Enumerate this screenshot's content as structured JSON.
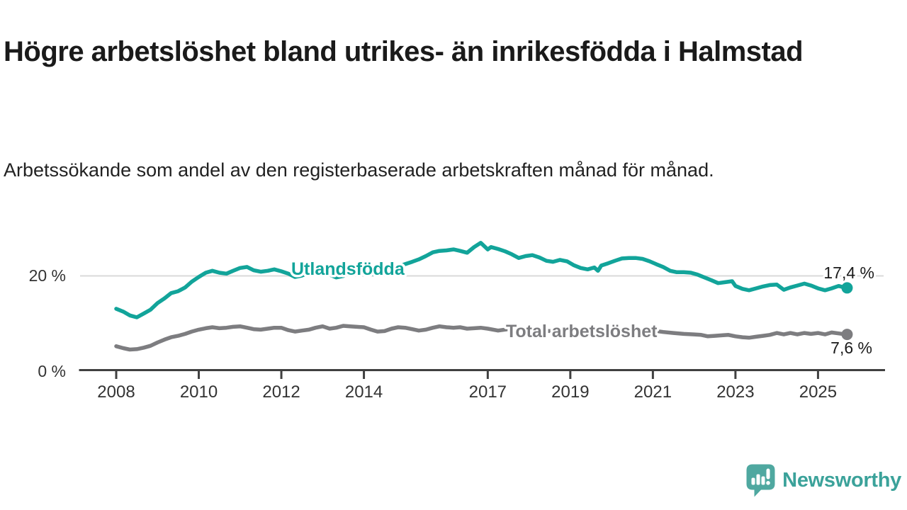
{
  "header": {
    "title": "Högre arbetslöshet bland utrikes- än inrikesfödda i Halmstad",
    "subtitle": "Arbetssökande som andel av den registerbaserade arbetskraften månad för månad."
  },
  "footer": {
    "brand": "Newsworthy"
  },
  "chart_data": {
    "type": "line",
    "title": "Högre arbetslöshet bland utrikes- än inrikesfödda i Halmstad",
    "subtitle": "Arbetssökande som andel av den registerbaserade arbetskraften månad för månad.",
    "xlabel": "",
    "ylabel": "",
    "x_unit": "year (monthly data)",
    "y_unit": "%",
    "ylim": [
      0,
      30
    ],
    "grid": "horizontal-20-only",
    "legend_position": "inline-on-line",
    "x_ticks": [
      {
        "year": 2008,
        "label": "2008"
      },
      {
        "year": 2010,
        "label": "2010"
      },
      {
        "year": 2012,
        "label": "2012"
      },
      {
        "year": 2014,
        "label": "2014"
      },
      {
        "year": 2017,
        "label": "2017"
      },
      {
        "year": 2019,
        "label": "2019"
      },
      {
        "year": 2021,
        "label": "2021"
      },
      {
        "year": 2023,
        "label": "2023"
      },
      {
        "year": 2025,
        "label": "2025"
      }
    ],
    "y_ticks": [
      {
        "value": 0,
        "label": "0 %"
      },
      {
        "value": 20,
        "label": "20 %"
      }
    ],
    "series": [
      {
        "name": "Utlandsfödda",
        "color": "#12a49a",
        "end_label": "17,4 %",
        "points": [
          [
            2008.0,
            13.0
          ],
          [
            2008.17,
            12.4
          ],
          [
            2008.33,
            11.6
          ],
          [
            2008.5,
            11.2
          ],
          [
            2008.67,
            12.0
          ],
          [
            2008.83,
            12.8
          ],
          [
            2009.0,
            14.2
          ],
          [
            2009.17,
            15.2
          ],
          [
            2009.33,
            16.3
          ],
          [
            2009.5,
            16.7
          ],
          [
            2009.67,
            17.5
          ],
          [
            2009.83,
            18.7
          ],
          [
            2010.0,
            19.7
          ],
          [
            2010.17,
            20.6
          ],
          [
            2010.33,
            21.0
          ],
          [
            2010.5,
            20.6
          ],
          [
            2010.67,
            20.4
          ],
          [
            2010.83,
            21.0
          ],
          [
            2011.0,
            21.6
          ],
          [
            2011.17,
            21.8
          ],
          [
            2011.33,
            21.1
          ],
          [
            2011.5,
            20.8
          ],
          [
            2011.67,
            21.0
          ],
          [
            2011.83,
            21.3
          ],
          [
            2012.0,
            20.9
          ],
          [
            2012.17,
            20.4
          ],
          [
            2012.33,
            19.7
          ],
          [
            2012.5,
            20.0
          ],
          [
            2012.67,
            20.6
          ],
          [
            2012.83,
            21.0
          ],
          [
            2013.0,
            20.7
          ],
          [
            2013.17,
            20.2
          ],
          [
            2013.33,
            19.6
          ],
          [
            2013.5,
            19.9
          ],
          [
            2013.67,
            20.5
          ],
          [
            2013.83,
            20.9
          ],
          [
            2014.0,
            20.9
          ],
          [
            2014.17,
            20.4
          ],
          [
            2014.33,
            20.1
          ],
          [
            2014.5,
            20.6
          ],
          [
            2014.67,
            21.3
          ],
          [
            2014.83,
            21.9
          ],
          [
            2015.0,
            22.4
          ],
          [
            2015.17,
            22.9
          ],
          [
            2015.33,
            23.4
          ],
          [
            2015.5,
            24.1
          ],
          [
            2015.67,
            24.9
          ],
          [
            2015.83,
            25.2
          ],
          [
            2016.0,
            25.3
          ],
          [
            2016.17,
            25.5
          ],
          [
            2016.33,
            25.2
          ],
          [
            2016.5,
            24.8
          ],
          [
            2016.67,
            26.0
          ],
          [
            2016.83,
            26.9
          ],
          [
            2017.0,
            25.5
          ],
          [
            2017.08,
            26.0
          ],
          [
            2017.25,
            25.6
          ],
          [
            2017.42,
            25.1
          ],
          [
            2017.58,
            24.5
          ],
          [
            2017.75,
            23.7
          ],
          [
            2017.92,
            24.1
          ],
          [
            2018.08,
            24.3
          ],
          [
            2018.25,
            23.8
          ],
          [
            2018.42,
            23.1
          ],
          [
            2018.58,
            22.9
          ],
          [
            2018.75,
            23.3
          ],
          [
            2018.92,
            23.0
          ],
          [
            2019.08,
            22.2
          ],
          [
            2019.25,
            21.6
          ],
          [
            2019.42,
            21.3
          ],
          [
            2019.58,
            21.7
          ],
          [
            2019.67,
            21.0
          ],
          [
            2019.75,
            22.1
          ],
          [
            2019.92,
            22.6
          ],
          [
            2020.08,
            23.1
          ],
          [
            2020.25,
            23.6
          ],
          [
            2020.42,
            23.7
          ],
          [
            2020.58,
            23.7
          ],
          [
            2020.75,
            23.5
          ],
          [
            2020.92,
            23.0
          ],
          [
            2021.08,
            22.4
          ],
          [
            2021.25,
            21.8
          ],
          [
            2021.42,
            21.0
          ],
          [
            2021.58,
            20.7
          ],
          [
            2021.75,
            20.7
          ],
          [
            2021.92,
            20.6
          ],
          [
            2022.08,
            20.2
          ],
          [
            2022.25,
            19.6
          ],
          [
            2022.42,
            19.0
          ],
          [
            2022.58,
            18.4
          ],
          [
            2022.75,
            18.6
          ],
          [
            2022.92,
            18.8
          ],
          [
            2023.0,
            17.8
          ],
          [
            2023.17,
            17.2
          ],
          [
            2023.33,
            16.9
          ],
          [
            2023.5,
            17.3
          ],
          [
            2023.67,
            17.7
          ],
          [
            2023.83,
            18.0
          ],
          [
            2024.0,
            18.1
          ],
          [
            2024.17,
            17.0
          ],
          [
            2024.33,
            17.5
          ],
          [
            2024.5,
            17.9
          ],
          [
            2024.67,
            18.3
          ],
          [
            2024.83,
            17.9
          ],
          [
            2025.0,
            17.3
          ],
          [
            2025.17,
            16.9
          ],
          [
            2025.33,
            17.3
          ],
          [
            2025.5,
            17.8
          ],
          [
            2025.67,
            17.4
          ]
        ]
      },
      {
        "name": "Total arbetslöshet",
        "color": "#7d7d80",
        "end_label": "7,6 %",
        "points": [
          [
            2008.0,
            5.1
          ],
          [
            2008.17,
            4.7
          ],
          [
            2008.33,
            4.4
          ],
          [
            2008.5,
            4.5
          ],
          [
            2008.67,
            4.8
          ],
          [
            2008.83,
            5.2
          ],
          [
            2009.0,
            5.9
          ],
          [
            2009.17,
            6.5
          ],
          [
            2009.33,
            7.0
          ],
          [
            2009.5,
            7.3
          ],
          [
            2009.67,
            7.7
          ],
          [
            2009.83,
            8.2
          ],
          [
            2010.0,
            8.6
          ],
          [
            2010.17,
            8.9
          ],
          [
            2010.33,
            9.1
          ],
          [
            2010.5,
            8.9
          ],
          [
            2010.67,
            9.0
          ],
          [
            2010.83,
            9.2
          ],
          [
            2011.0,
            9.3
          ],
          [
            2011.17,
            9.0
          ],
          [
            2011.33,
            8.7
          ],
          [
            2011.5,
            8.6
          ],
          [
            2011.67,
            8.8
          ],
          [
            2011.83,
            9.0
          ],
          [
            2012.0,
            9.0
          ],
          [
            2012.17,
            8.5
          ],
          [
            2012.33,
            8.2
          ],
          [
            2012.5,
            8.4
          ],
          [
            2012.67,
            8.6
          ],
          [
            2012.83,
            9.0
          ],
          [
            2013.0,
            9.3
          ],
          [
            2013.17,
            8.8
          ],
          [
            2013.33,
            9.0
          ],
          [
            2013.5,
            9.4
          ],
          [
            2013.67,
            9.3
          ],
          [
            2013.83,
            9.2
          ],
          [
            2014.0,
            9.1
          ],
          [
            2014.17,
            8.6
          ],
          [
            2014.33,
            8.2
          ],
          [
            2014.5,
            8.3
          ],
          [
            2014.67,
            8.8
          ],
          [
            2014.83,
            9.1
          ],
          [
            2015.0,
            9.0
          ],
          [
            2015.17,
            8.7
          ],
          [
            2015.33,
            8.4
          ],
          [
            2015.5,
            8.6
          ],
          [
            2015.67,
            9.0
          ],
          [
            2015.83,
            9.3
          ],
          [
            2016.0,
            9.1
          ],
          [
            2016.17,
            9.0
          ],
          [
            2016.33,
            9.1
          ],
          [
            2016.5,
            8.8
          ],
          [
            2016.67,
            8.9
          ],
          [
            2016.83,
            9.0
          ],
          [
            2017.0,
            8.8
          ],
          [
            2017.25,
            8.4
          ],
          [
            2017.5,
            8.7
          ],
          [
            2017.75,
            8.8
          ],
          [
            2018.0,
            8.6
          ],
          [
            2018.25,
            8.4
          ],
          [
            2018.5,
            8.3
          ],
          [
            2018.75,
            8.4
          ],
          [
            2019.0,
            8.2
          ],
          [
            2019.25,
            8.0
          ],
          [
            2019.5,
            8.1
          ],
          [
            2019.75,
            8.3
          ],
          [
            2020.0,
            8.5
          ],
          [
            2020.25,
            8.8
          ],
          [
            2020.5,
            8.9
          ],
          [
            2020.75,
            8.7
          ],
          [
            2021.0,
            8.4
          ],
          [
            2021.25,
            8.1
          ],
          [
            2021.5,
            7.9
          ],
          [
            2021.75,
            7.7
          ],
          [
            2022.0,
            7.6
          ],
          [
            2022.17,
            7.5
          ],
          [
            2022.33,
            7.2
          ],
          [
            2022.5,
            7.3
          ],
          [
            2022.67,
            7.4
          ],
          [
            2022.83,
            7.5
          ],
          [
            2023.0,
            7.2
          ],
          [
            2023.17,
            7.0
          ],
          [
            2023.33,
            6.9
          ],
          [
            2023.5,
            7.1
          ],
          [
            2023.67,
            7.3
          ],
          [
            2023.83,
            7.5
          ],
          [
            2024.0,
            7.9
          ],
          [
            2024.17,
            7.6
          ],
          [
            2024.33,
            7.9
          ],
          [
            2024.5,
            7.6
          ],
          [
            2024.67,
            7.9
          ],
          [
            2024.83,
            7.7
          ],
          [
            2025.0,
            7.9
          ],
          [
            2025.17,
            7.6
          ],
          [
            2025.33,
            8.0
          ],
          [
            2025.5,
            7.8
          ],
          [
            2025.67,
            7.6
          ]
        ]
      }
    ]
  },
  "colors": {
    "accent_teal": "#12a49a",
    "series_gray": "#7d7d80",
    "grid": "#d9d9d9",
    "axis": "#404040",
    "text_dark": "#1a1a1a",
    "brand_teal": "#4fa8a0"
  }
}
